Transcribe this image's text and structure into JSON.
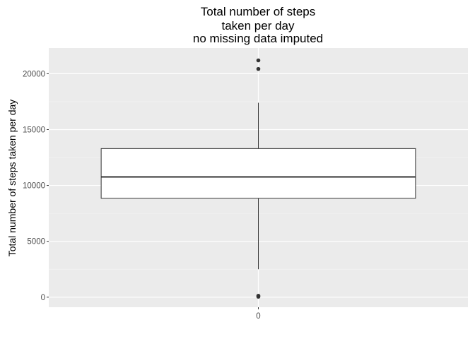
{
  "chart_data": {
    "type": "boxplot",
    "title_lines": [
      "Total number of steps",
      "taken per day",
      "no missing data imputed"
    ],
    "xlabel": "",
    "ylabel": "Total number of steps taken per day",
    "categories": [
      "0"
    ],
    "y_ticks": [
      0,
      5000,
      10000,
      15000,
      20000
    ],
    "y_tick_labels": [
      "0",
      "5000",
      "10000",
      "15000",
      "20000"
    ],
    "ylim": [
      -900,
      22300
    ],
    "grid": true,
    "legend": "none",
    "box": {
      "lower_whisker": 2500,
      "q1": 8850,
      "median": 10765,
      "q3": 13300,
      "upper_whisker": 17400,
      "outliers": [
        21194,
        20427,
        41,
        126
      ]
    },
    "colors": {
      "panel_background": "#ebebeb",
      "grid_major": "#ffffff",
      "grid_minor": "#f5f5f5",
      "box_fill": "#ffffff",
      "box_line": "#333333",
      "outlier": "#333333"
    }
  }
}
